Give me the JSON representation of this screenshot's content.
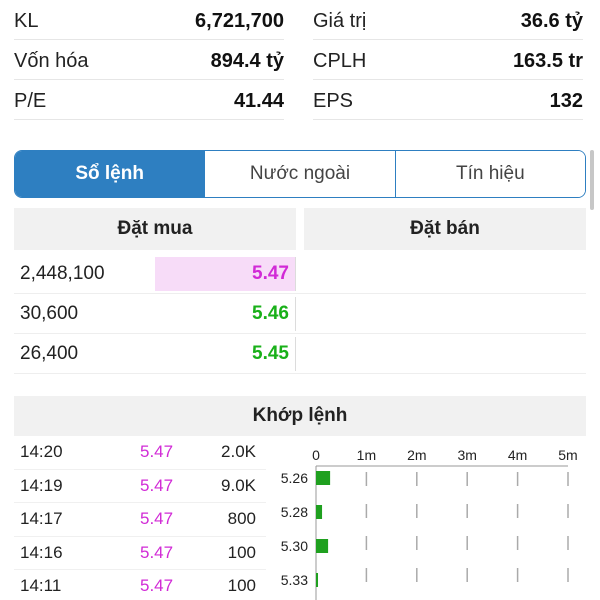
{
  "stats": {
    "left": [
      {
        "label": "KL",
        "value": "6,721,700"
      },
      {
        "label": "Vốn hóa",
        "value": "894.4 tỷ"
      },
      {
        "label": "P/E",
        "value": "41.44"
      }
    ],
    "right": [
      {
        "label": "Giá trị",
        "value": "36.6 tỷ"
      },
      {
        "label": "CPLH",
        "value": "163.5 tr"
      },
      {
        "label": "EPS",
        "value": "132"
      }
    ]
  },
  "tabs": [
    {
      "label": "Sổ lệnh",
      "active": true
    },
    {
      "label": "Nước ngoài",
      "active": false
    },
    {
      "label": "Tín hiệu",
      "active": false
    }
  ],
  "order_book": {
    "buy_header": "Đặt mua",
    "sell_header": "Đặt bán",
    "rows": [
      {
        "volume": "2,448,100",
        "price": "5.47",
        "color": "#d12ad6",
        "bar_color": "#f7dcf8",
        "bar_fraction": 1.0
      },
      {
        "volume": "30,600",
        "price": "5.46",
        "color": "#19b019",
        "bar_color": "#dff3df",
        "bar_fraction": 0.0
      },
      {
        "volume": "26,400",
        "price": "5.45",
        "color": "#19b019",
        "bar_color": "#dff3df",
        "bar_fraction": 0.0
      }
    ]
  },
  "match": {
    "header": "Khớp lệnh",
    "rows": [
      {
        "time": "14:20",
        "price": "5.47",
        "volume": "2.0K"
      },
      {
        "time": "14:19",
        "price": "5.47",
        "volume": "9.0K"
      },
      {
        "time": "14:17",
        "price": "5.47",
        "volume": "800"
      },
      {
        "time": "14:16",
        "price": "5.47",
        "volume": "100"
      },
      {
        "time": "14:11",
        "price": "5.47",
        "volume": "100"
      }
    ]
  },
  "chart_data": {
    "type": "bar",
    "orientation": "horizontal",
    "x_ticks": [
      "0",
      "1m",
      "2m",
      "3m",
      "4m",
      "5m"
    ],
    "xlim": [
      0,
      5000000
    ],
    "categories": [
      "5.26",
      "5.28",
      "5.30",
      "5.33"
    ],
    "values": [
      280000,
      120000,
      240000,
      40000
    ],
    "bar_color": "#1fa01f"
  }
}
